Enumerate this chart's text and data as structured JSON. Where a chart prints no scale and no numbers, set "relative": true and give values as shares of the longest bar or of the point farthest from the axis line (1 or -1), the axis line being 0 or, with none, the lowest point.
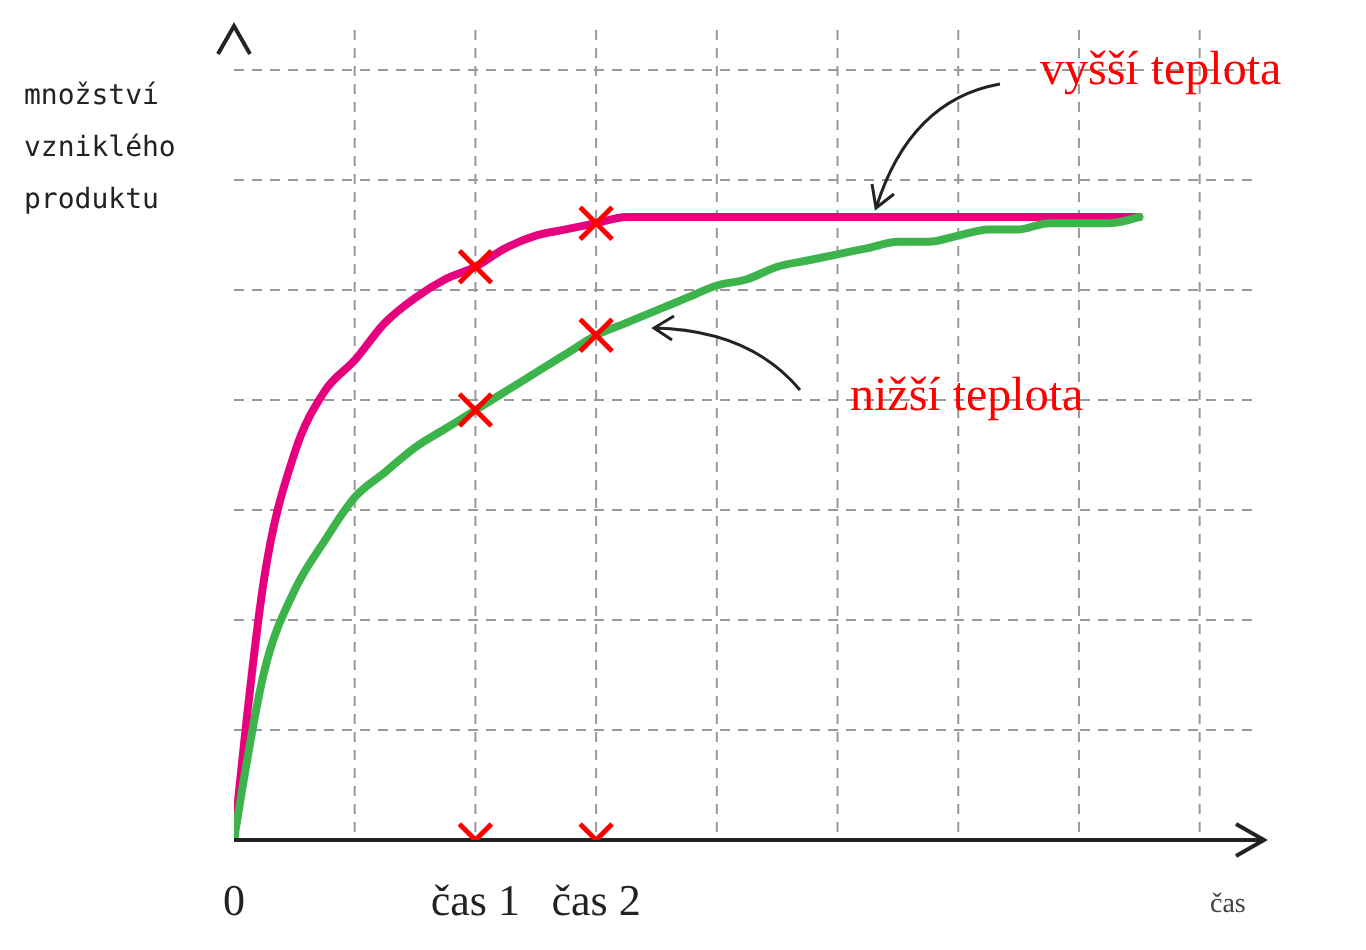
{
  "chart_data": {
    "type": "line",
    "relative": true,
    "ylabel": "množství vzniklého produktu",
    "xlabel": "čas",
    "grid": true,
    "categories": [
      "0",
      null,
      null,
      null,
      null,
      null,
      null,
      null,
      "čas 1",
      null,
      null,
      null,
      "čas 2",
      null,
      null,
      null,
      null,
      null,
      null,
      null,
      null,
      null,
      null,
      null,
      null,
      null,
      null,
      null,
      null,
      null,
      null,
      null,
      null,
      null,
      null
    ],
    "series": [
      {
        "color": "#e6007e",
        "marker": "none",
        "values": [
          0,
          0.42,
          0.62,
          0.72,
          0.77,
          0.83,
          0.87,
          0.9,
          0.92,
          0.95,
          0.97,
          0.98,
          0.99,
          1,
          1,
          1,
          1,
          1,
          1,
          1,
          1,
          1,
          1,
          1,
          1,
          1,
          1,
          1,
          1,
          1,
          1,
          null,
          null,
          null,
          null
        ]
      },
      {
        "color": "#3cb44b",
        "marker": "none",
        "values": [
          0,
          0.27,
          0.4,
          0.48,
          0.55,
          0.59,
          0.63,
          0.66,
          0.69,
          0.72,
          0.75,
          0.78,
          0.81,
          0.83,
          0.85,
          0.87,
          0.89,
          0.9,
          0.92,
          0.93,
          0.94,
          0.95,
          0.96,
          0.96,
          0.97,
          0.98,
          0.98,
          0.99,
          0.99,
          0.99,
          1,
          null,
          null,
          null,
          null
        ]
      },
      {
        "type": "scatter",
        "color": "#ff0000",
        "marker": "cross",
        "x": [
          "čas 1",
          "čas 1",
          "čas 2",
          "čas 2",
          "čas 1",
          "čas 2"
        ],
        "values": [
          0.92,
          0.69,
          0.99,
          0.81,
          0,
          0
        ]
      }
    ],
    "annotations": [
      "vyšší teplota",
      "nižší teplota"
    ]
  }
}
